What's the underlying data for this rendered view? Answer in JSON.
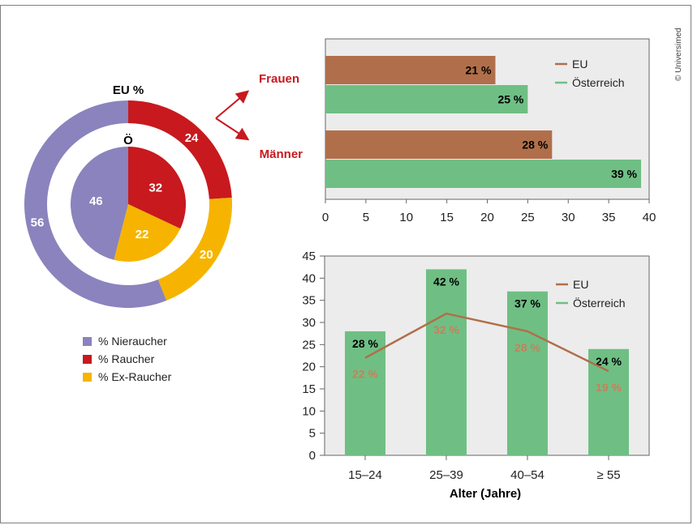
{
  "credit": "© Universimed",
  "colors": {
    "nonsmoker": "#8a83bd",
    "smoker": "#c8191e",
    "exsmoker": "#f6b400",
    "eu": "#b06f4a",
    "austria": "#6fbf84",
    "plot_bg": "#ececec",
    "label_female": "#c8191e"
  },
  "chart_data": [
    {
      "type": "pie",
      "title": "EU %",
      "inner_title": "Ö",
      "categories": [
        "% Nieraucher",
        "% Raucher",
        "% Ex-Raucher"
      ],
      "series": [
        {
          "name": "EU",
          "values": [
            56,
            24,
            20
          ],
          "labels": [
            "56",
            "24",
            "20"
          ]
        },
        {
          "name": "Ö",
          "values": [
            46,
            32,
            22
          ],
          "labels": [
            "46",
            "32",
            "22"
          ]
        }
      ],
      "legend": {
        "position": "bottom-left",
        "items": [
          "% Nieraucher",
          "% Raucher",
          "% Ex-Raucher"
        ]
      }
    },
    {
      "type": "bar",
      "orientation": "horizontal",
      "categories": [
        "Frauen",
        "Männer"
      ],
      "series": [
        {
          "name": "EU",
          "values": [
            21,
            28
          ],
          "labels": [
            "21 %",
            "28 %"
          ]
        },
        {
          "name": "Österreich",
          "values": [
            25,
            39
          ],
          "labels": [
            "25 %",
            "39 %"
          ]
        }
      ],
      "xlim": [
        0,
        40
      ],
      "xticks": [
        "0",
        "5",
        "10",
        "15",
        "20",
        "25",
        "30",
        "35",
        "40"
      ],
      "legend": {
        "position": "top-right",
        "items": [
          "EU",
          "Österreich"
        ]
      }
    },
    {
      "type": "bar",
      "categories": [
        "15–24",
        "25–39",
        "40–54",
        "≥ 55"
      ],
      "series": [
        {
          "name": "Österreich",
          "kind": "bar",
          "values": [
            28,
            42,
            37,
            24
          ],
          "labels": [
            "28 %",
            "42 %",
            "37 %",
            "24 %"
          ]
        },
        {
          "name": "EU",
          "kind": "line",
          "values": [
            22,
            32,
            28,
            19
          ],
          "labels": [
            "22 %",
            "32 %",
            "28 %",
            "19 %"
          ]
        }
      ],
      "ylim": [
        0,
        45
      ],
      "yticks": [
        "0",
        "5",
        "10",
        "15",
        "20",
        "25",
        "30",
        "35",
        "40",
        "45"
      ],
      "xlabel": "Alter (Jahre)",
      "legend": {
        "position": "top-right",
        "items": [
          "EU",
          "Österreich"
        ]
      }
    }
  ]
}
